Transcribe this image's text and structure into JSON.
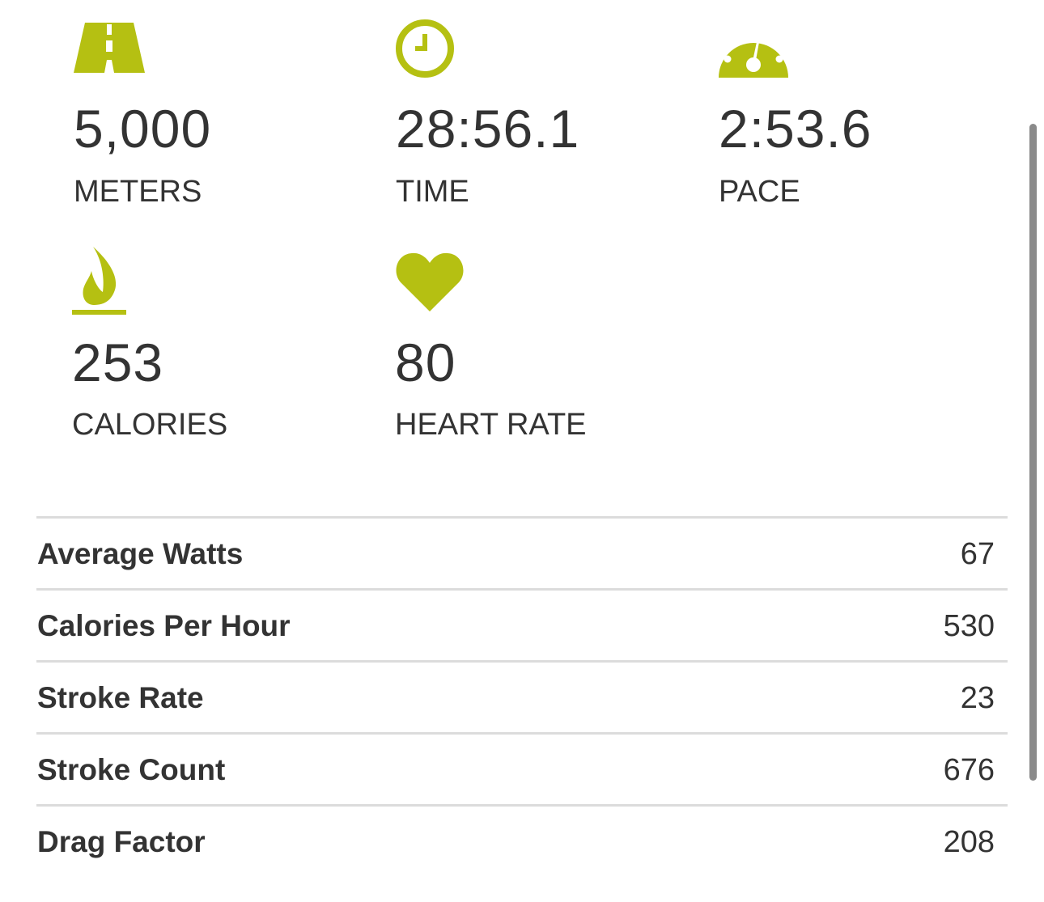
{
  "colors": {
    "accent": "#b5c012",
    "text": "#333333",
    "divider": "#dcdcdc",
    "scrollbar": "#8a8a8a"
  },
  "stats": [
    {
      "icon": "road-icon",
      "value": "5,000",
      "label": "METERS"
    },
    {
      "icon": "clock-icon",
      "value": "28:56.1",
      "label": "TIME"
    },
    {
      "icon": "speedometer-icon",
      "value": "2:53.6",
      "label": "PACE"
    },
    {
      "icon": "flame-icon",
      "value": "253",
      "label": "CALORIES"
    },
    {
      "icon": "heart-icon",
      "value": "80",
      "label": "HEART RATE"
    }
  ],
  "details": [
    {
      "label": "Average Watts",
      "value": "67"
    },
    {
      "label": "Calories Per Hour",
      "value": "530"
    },
    {
      "label": "Stroke Rate",
      "value": "23"
    },
    {
      "label": "Stroke Count",
      "value": "676"
    },
    {
      "label": "Drag Factor",
      "value": "208"
    }
  ]
}
